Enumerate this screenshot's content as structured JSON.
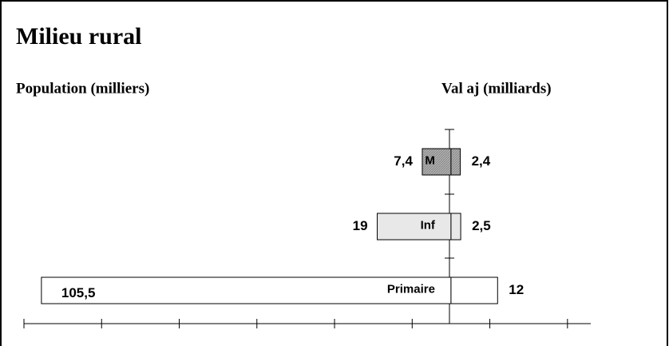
{
  "chart_data": {
    "type": "butterfly",
    "title": "Milieu rural",
    "categories": [
      "M",
      "Inf",
      "Primaire"
    ],
    "colors": [
      "#a8a8a8",
      "#e8e8e8",
      "#ffffff"
    ],
    "series": [
      {
        "name": "Population (milliers)",
        "side": "left",
        "values": [
          7.4,
          19,
          105.5
        ],
        "value_labels": [
          "7,4",
          "19",
          "105,5"
        ]
      },
      {
        "name": "Val aj (milliards)",
        "side": "right",
        "values": [
          2.4,
          2.5,
          12
        ],
        "value_labels": [
          "2,4",
          "2,5",
          "12"
        ]
      }
    ],
    "xlim": [
      -110,
      36
    ],
    "xticks": [
      -110,
      -90,
      -70,
      -50,
      -30,
      -10,
      10,
      30
    ]
  }
}
